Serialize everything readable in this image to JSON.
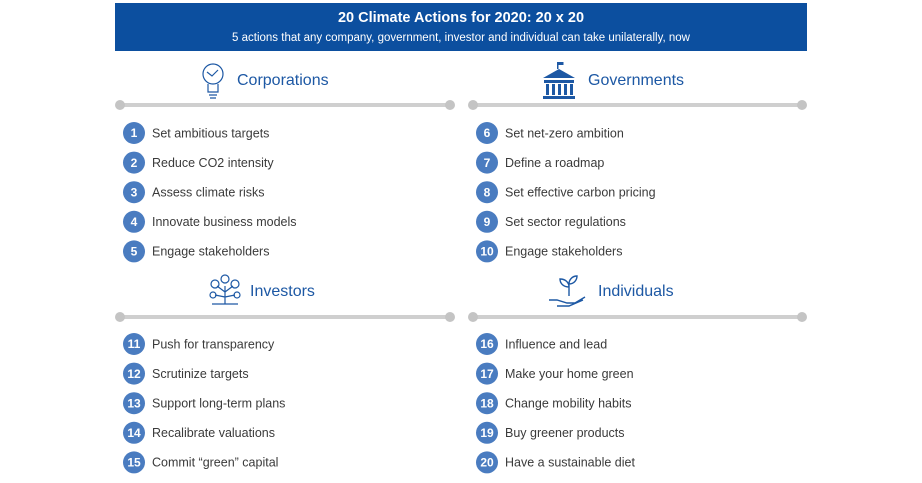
{
  "header": {
    "title": "20 Climate Actions for 2020: 20 x 20",
    "subtitle": "5 actions that any company, government, investor and individual can take unilaterally, now"
  },
  "sections": [
    {
      "title": "Corporations",
      "items": [
        {
          "number": "1",
          "text": "Set ambitious targets"
        },
        {
          "number": "2",
          "text": "Reduce CO2 intensity"
        },
        {
          "number": "3",
          "text": "Assess climate risks"
        },
        {
          "number": "4",
          "text": "Innovate business models"
        },
        {
          "number": "5",
          "text": "Engage stakeholders"
        }
      ]
    },
    {
      "title": "Governments",
      "items": [
        {
          "number": "6",
          "text": "Set net-zero ambition"
        },
        {
          "number": "7",
          "text": "Define a roadmap"
        },
        {
          "number": "8",
          "text": "Set effective carbon pricing"
        },
        {
          "number": "9",
          "text": "Set sector regulations"
        },
        {
          "number": "10",
          "text": "Engage stakeholders"
        }
      ]
    },
    {
      "title": "Investors",
      "items": [
        {
          "number": "11",
          "text": "Push for transparency"
        },
        {
          "number": "12",
          "text": "Scrutinize targets"
        },
        {
          "number": "13",
          "text": "Support long-term plans"
        },
        {
          "number": "14",
          "text": "Recalibrate valuations"
        },
        {
          "number": "15",
          "text": "Commit “green” capital"
        }
      ]
    },
    {
      "title": "Individuals",
      "items": [
        {
          "number": "16",
          "text": "Influence and lead"
        },
        {
          "number": "17",
          "text": "Make your home green"
        },
        {
          "number": "18",
          "text": "Change mobility habits"
        },
        {
          "number": "19",
          "text": "Buy greener products"
        },
        {
          "number": "20",
          "text": "Have a sustainable diet"
        }
      ]
    }
  ]
}
